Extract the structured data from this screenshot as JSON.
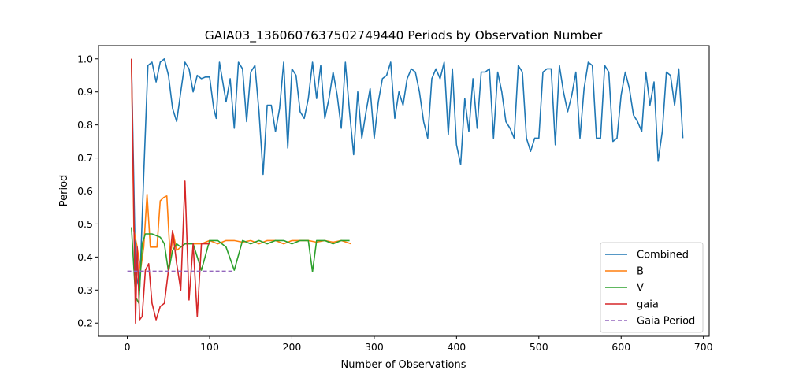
{
  "chart_data": {
    "type": "line",
    "title": "GAIA03_1360607637502749440 Periods by Observation Number",
    "xlabel": "Number of Observations",
    "ylabel": "Period",
    "xlim": [
      -35,
      707
    ],
    "ylim": [
      0.16,
      1.04
    ],
    "xticks": [
      0,
      100,
      200,
      300,
      400,
      500,
      600,
      700
    ],
    "yticks": [
      0.2,
      0.3,
      0.4,
      0.5,
      0.6,
      0.7,
      0.8,
      0.9,
      1.0
    ],
    "xtick_labels": [
      "0",
      "100",
      "200",
      "300",
      "400",
      "500",
      "600",
      "700"
    ],
    "ytick_labels": [
      "0.2",
      "0.3",
      "0.4",
      "0.5",
      "0.6",
      "0.7",
      "0.8",
      "0.9",
      "1.0"
    ],
    "grid": false,
    "legend_position": "lower right",
    "series": [
      {
        "name": "Combined",
        "color": "#1f77b4",
        "style": "solid",
        "x": [
          5,
          10,
          15,
          20,
          25,
          30,
          35,
          40,
          45,
          50,
          55,
          60,
          65,
          70,
          75,
          80,
          85,
          90,
          95,
          100,
          105,
          108,
          112,
          116,
          120,
          125,
          130,
          135,
          140,
          145,
          150,
          155,
          160,
          165,
          170,
          175,
          180,
          185,
          190,
          195,
          200,
          205,
          210,
          215,
          220,
          225,
          230,
          235,
          240,
          245,
          250,
          255,
          260,
          265,
          270,
          275,
          280,
          285,
          290,
          295,
          300,
          305,
          310,
          315,
          320,
          325,
          330,
          335,
          340,
          345,
          350,
          355,
          360,
          365,
          370,
          375,
          380,
          385,
          390,
          395,
          400,
          405,
          410,
          415,
          420,
          425,
          430,
          435,
          440,
          445,
          450,
          455,
          460,
          465,
          470,
          475,
          480,
          485,
          490,
          495,
          500,
          505,
          510,
          515,
          520,
          525,
          530,
          535,
          540,
          545,
          550,
          555,
          560,
          565,
          570,
          575,
          580,
          585,
          590,
          595,
          600,
          605,
          610,
          615,
          620,
          625,
          630,
          635,
          640,
          645,
          650,
          655,
          660,
          665,
          670,
          675
        ],
        "y": [
          1.0,
          0.35,
          0.3,
          0.65,
          0.98,
          0.99,
          0.93,
          0.99,
          1.0,
          0.95,
          0.85,
          0.81,
          0.9,
          0.99,
          0.97,
          0.9,
          0.95,
          0.94,
          0.945,
          0.945,
          0.85,
          0.82,
          0.99,
          0.93,
          0.87,
          0.94,
          0.79,
          0.99,
          0.97,
          0.81,
          0.96,
          0.98,
          0.84,
          0.65,
          0.86,
          0.86,
          0.78,
          0.85,
          0.99,
          0.73,
          0.97,
          0.95,
          0.84,
          0.82,
          0.88,
          0.99,
          0.88,
          0.98,
          0.82,
          0.88,
          0.96,
          0.89,
          0.79,
          0.99,
          0.84,
          0.71,
          0.9,
          0.76,
          0.84,
          0.91,
          0.76,
          0.87,
          0.94,
          0.95,
          0.99,
          0.82,
          0.9,
          0.86,
          0.94,
          0.97,
          0.96,
          0.9,
          0.81,
          0.76,
          0.94,
          0.97,
          0.94,
          0.99,
          0.77,
          0.97,
          0.74,
          0.68,
          0.88,
          0.78,
          0.94,
          0.79,
          0.96,
          0.96,
          0.97,
          0.76,
          0.96,
          0.9,
          0.81,
          0.79,
          0.76,
          0.98,
          0.96,
          0.76,
          0.72,
          0.76,
          0.76,
          0.96,
          0.97,
          0.97,
          0.74,
          0.98,
          0.9,
          0.84,
          0.89,
          0.96,
          0.76,
          0.91,
          0.99,
          0.98,
          0.76,
          0.76,
          0.98,
          0.96,
          0.75,
          0.76,
          0.89,
          0.96,
          0.91,
          0.83,
          0.81,
          0.78,
          0.96,
          0.86,
          0.93,
          0.69,
          0.78,
          0.96,
          0.95,
          0.86,
          0.97,
          0.76
        ]
      },
      {
        "name": "B",
        "color": "#ff7f0e",
        "style": "solid",
        "x": [
          5,
          8,
          12,
          16,
          20,
          24,
          28,
          32,
          36,
          40,
          44,
          48,
          52,
          56,
          60,
          70,
          80,
          90,
          100,
          110,
          120,
          130,
          140,
          150,
          160,
          170,
          180,
          190,
          200,
          210,
          220,
          230,
          240,
          250,
          260,
          272
        ],
        "y": [
          1.0,
          0.48,
          0.43,
          0.36,
          0.43,
          0.59,
          0.43,
          0.43,
          0.43,
          0.57,
          0.58,
          0.585,
          0.4,
          0.47,
          0.42,
          0.44,
          0.44,
          0.44,
          0.45,
          0.44,
          0.45,
          0.45,
          0.445,
          0.45,
          0.44,
          0.45,
          0.45,
          0.44,
          0.45,
          0.45,
          0.45,
          0.445,
          0.45,
          0.445,
          0.45,
          0.44
        ]
      },
      {
        "name": "V",
        "color": "#2ca02c",
        "style": "solid",
        "x": [
          5,
          10,
          14,
          18,
          22,
          30,
          40,
          45,
          50,
          55,
          60,
          65,
          70,
          75,
          80,
          90,
          100,
          110,
          120,
          130,
          140,
          150,
          160,
          170,
          180,
          190,
          200,
          210,
          220,
          225,
          230,
          240,
          250,
          260,
          270
        ],
        "y": [
          0.49,
          0.28,
          0.26,
          0.44,
          0.47,
          0.47,
          0.46,
          0.44,
          0.355,
          0.42,
          0.44,
          0.43,
          0.44,
          0.44,
          0.44,
          0.36,
          0.45,
          0.45,
          0.43,
          0.36,
          0.45,
          0.44,
          0.45,
          0.44,
          0.45,
          0.45,
          0.44,
          0.45,
          0.45,
          0.355,
          0.45,
          0.45,
          0.44,
          0.45,
          0.45
        ]
      },
      {
        "name": "gaia",
        "color": "#d62728",
        "style": "solid",
        "x": [
          5,
          10,
          12,
          15,
          18,
          22,
          26,
          30,
          35,
          40,
          45,
          50,
          55,
          60,
          65,
          70,
          75,
          80,
          85,
          90,
          95,
          100
        ],
        "y": [
          1.0,
          0.2,
          0.43,
          0.21,
          0.22,
          0.36,
          0.38,
          0.26,
          0.21,
          0.25,
          0.26,
          0.36,
          0.48,
          0.38,
          0.3,
          0.63,
          0.27,
          0.44,
          0.22,
          0.44,
          0.44,
          0.44
        ]
      },
      {
        "name": "Gaia Period",
        "color": "#9467bd",
        "style": "dashed",
        "x": [
          0,
          130
        ],
        "y": [
          0.357,
          0.357
        ]
      }
    ]
  }
}
